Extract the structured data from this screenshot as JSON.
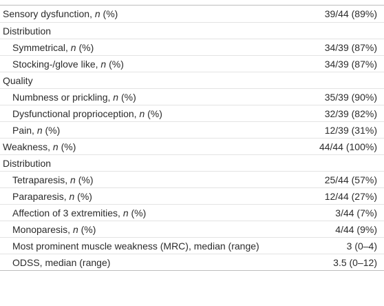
{
  "table": {
    "rows": [
      {
        "text": "Sensory dysfunction, ",
        "em": "n",
        "after": " (%)",
        "value": "39/44 (89%)"
      },
      {
        "text": "Distribution"
      },
      {
        "level": 1,
        "text": "Symmetrical, ",
        "em": "n",
        "after": " (%)",
        "value": "34/39 (87%)"
      },
      {
        "level": 1,
        "text": "Stocking-/glove like, ",
        "em": "n",
        "after": " (%)",
        "value": "34/39 (87%)"
      },
      {
        "text": "Quality"
      },
      {
        "level": 1,
        "text": "Numbness or prickling, ",
        "em": "n",
        "after": " (%)",
        "value": "35/39 (90%)"
      },
      {
        "level": 1,
        "text": "Dysfunctional proprioception, ",
        "em": "n",
        "after": " (%)",
        "value": "32/39 (82%)"
      },
      {
        "level": 1,
        "text": "Pain, ",
        "em": "n",
        "after": " (%)",
        "value": "12/39 (31%)"
      },
      {
        "text": "Weakness, ",
        "em": "n",
        "after": " (%)",
        "value": "44/44 (100%)"
      },
      {
        "text": "Distribution"
      },
      {
        "level": 1,
        "text": "Tetraparesis, ",
        "em": "n",
        "after": " (%)",
        "value": "25/44 (57%)"
      },
      {
        "level": 1,
        "text": "Paraparesis, ",
        "em": "n",
        "after": " (%)",
        "value": "12/44 (27%)"
      },
      {
        "level": 1,
        "text": "Affection of 3 extremities, ",
        "em": "n",
        "after": " (%)",
        "value": "3/44 (7%)"
      },
      {
        "level": 1,
        "text": "Monoparesis, ",
        "em": "n",
        "after": " (%)",
        "value": "4/44 (9%)"
      },
      {
        "level": 1,
        "text": "Most prominent muscle weakness (MRC), median (range)",
        "value": "3 (0–4)"
      },
      {
        "level": 1,
        "text": "ODSS, median (range)",
        "value": "3.5 (0–12)"
      }
    ]
  }
}
